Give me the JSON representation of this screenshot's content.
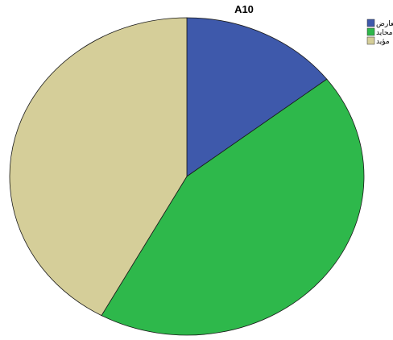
{
  "chart_data": {
    "type": "pie",
    "title": "A10",
    "start_angle_deg": 0,
    "direction": "clockwise",
    "slices": [
      {
        "label": "معارض",
        "value": 14.5,
        "color": "#3e59ab"
      },
      {
        "label": "محايد",
        "value": 43.5,
        "color": "#2eb84b"
      },
      {
        "label": "مؤيد",
        "value": 42.0,
        "color": "#d5ce99"
      }
    ],
    "legend": {
      "placement": "top-right"
    }
  }
}
